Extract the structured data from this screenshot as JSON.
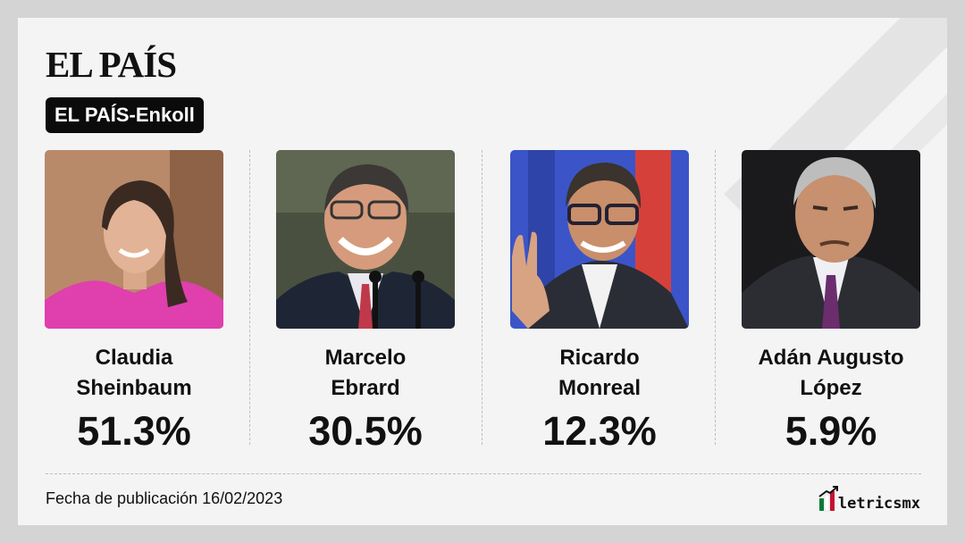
{
  "header": {
    "logo_text": "EL PAÍS",
    "badge_label": "EL PAÍS-Enkoll"
  },
  "chart_data": {
    "type": "table",
    "categories": [
      "Claudia Sheinbaum",
      "Marcelo Ebrard",
      "Ricardo Monreal",
      "Adán Augusto López"
    ],
    "values_label": [
      "51.3%",
      "30.5%",
      "12.3%",
      "5.9%"
    ],
    "values": [
      51.3,
      30.5,
      12.3,
      5.9
    ],
    "unit": "%"
  },
  "candidates": [
    {
      "name_line1": "Claudia",
      "name_line2": "Sheinbaum",
      "percent": "51.3%",
      "photo": "portrait-woman-pink-blouse"
    },
    {
      "name_line1": "Marcelo",
      "name_line2": "Ebrard",
      "percent": "30.5%",
      "photo": "portrait-man-glasses-microphones"
    },
    {
      "name_line1": "Ricardo",
      "name_line2": "Monreal",
      "percent": "12.3%",
      "photo": "portrait-man-glasses-waving"
    },
    {
      "name_line1": "Adán Augusto",
      "name_line2": "López",
      "percent": "5.9%",
      "photo": "portrait-man-purple-tie"
    }
  ],
  "footer": {
    "publication_date": "Fecha de publicación 16/02/2023",
    "brand": "letricsmx",
    "brand_colors": [
      "#0a7a3a",
      "#ffffff",
      "#c8102e"
    ]
  }
}
